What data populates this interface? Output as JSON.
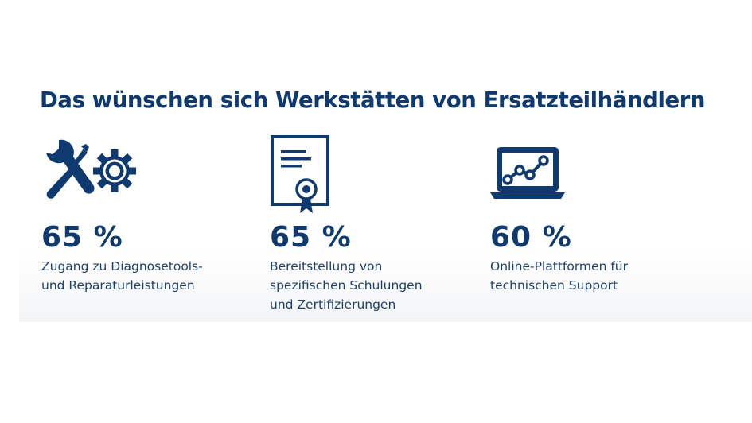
{
  "header": {
    "title": "Das wünschen sich Werkstätten von Ersatzteilhändlern"
  },
  "stats": [
    {
      "icon": "wrench-screwdriver-gear-icon",
      "percent": "65 %",
      "lines": [
        "Zugang zu Diagnosetools-",
        "und Reparaturleistungen"
      ]
    },
    {
      "icon": "certificate-icon",
      "percent": "65 %",
      "lines": [
        "Bereitstellung von",
        "spezifischen Schulungen",
        "und Zertifizierungen"
      ]
    },
    {
      "icon": "laptop-chart-icon",
      "percent": "60 %",
      "lines": [
        "Online-Plattformen für",
        "technischen Support"
      ]
    }
  ],
  "colors": {
    "primary": "#0f3a70",
    "text": "#1d3f6e",
    "background": "#ffffff"
  }
}
